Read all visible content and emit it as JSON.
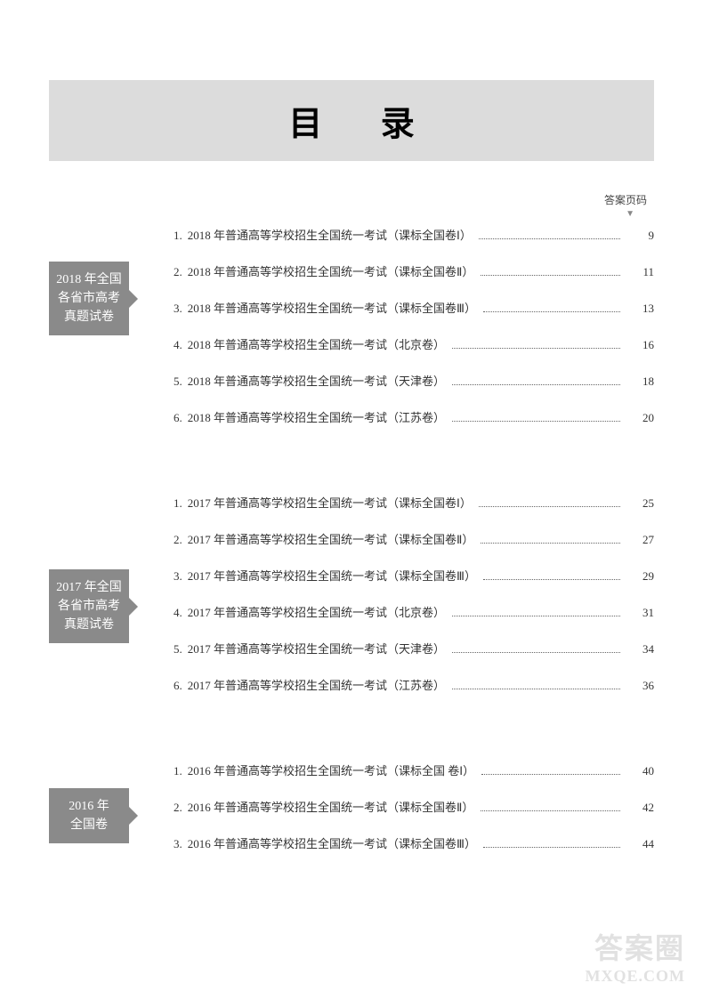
{
  "title": "目 录",
  "header_label": "答案页码",
  "sections": [
    {
      "label": "2018 年全国各省市高考真题试卷",
      "items": [
        {
          "num": "1.",
          "title": "2018 年普通高等学校招生全国统一考试（课标全国卷Ⅰ）",
          "page": "9"
        },
        {
          "num": "2.",
          "title": "2018 年普通高等学校招生全国统一考试（课标全国卷Ⅱ）",
          "page": "11"
        },
        {
          "num": "3.",
          "title": "2018 年普通高等学校招生全国统一考试（课标全国卷Ⅲ）",
          "page": "13"
        },
        {
          "num": "4.",
          "title": "2018 年普通高等学校招生全国统一考试（北京卷）",
          "page": "16"
        },
        {
          "num": "5.",
          "title": "2018 年普通高等学校招生全国统一考试（天津卷）",
          "page": "18"
        },
        {
          "num": "6.",
          "title": "2018 年普通高等学校招生全国统一考试（江苏卷）",
          "page": "20"
        }
      ]
    },
    {
      "label": "2017 年全国各省市高考真题试卷",
      "items": [
        {
          "num": "1.",
          "title": "2017 年普通高等学校招生全国统一考试（课标全国卷Ⅰ）",
          "page": "25"
        },
        {
          "num": "2.",
          "title": "2017 年普通高等学校招生全国统一考试（课标全国卷Ⅱ）",
          "page": "27"
        },
        {
          "num": "3.",
          "title": "2017 年普通高等学校招生全国统一考试（课标全国卷Ⅲ）",
          "page": "29"
        },
        {
          "num": "4.",
          "title": "2017 年普通高等学校招生全国统一考试（北京卷）",
          "page": "31"
        },
        {
          "num": "5.",
          "title": "2017 年普通高等学校招生全国统一考试（天津卷）",
          "page": "34"
        },
        {
          "num": "6.",
          "title": "2017 年普通高等学校招生全国统一考试（江苏卷）",
          "page": "36"
        }
      ]
    },
    {
      "label": "2016 年\n全国卷",
      "items": [
        {
          "num": "1.",
          "title": "2016 年普通高等学校招生全国统一考试（课标全国 卷Ⅰ）",
          "page": "40"
        },
        {
          "num": "2.",
          "title": "2016 年普通高等学校招生全国统一考试（课标全国卷Ⅱ）",
          "page": "42"
        },
        {
          "num": "3.",
          "title": "2016 年普通高等学校招生全国统一考试（课标全国卷Ⅲ）",
          "page": "44"
        }
      ]
    }
  ],
  "watermark": {
    "chinese": "答案圈",
    "url": "MXQE.COM"
  },
  "colors": {
    "banner_bg": "#dcdcdc",
    "label_bg": "#8a8a8a",
    "label_text": "#ffffff",
    "body_text": "#333333",
    "watermark_color": "#aaaaaa"
  }
}
